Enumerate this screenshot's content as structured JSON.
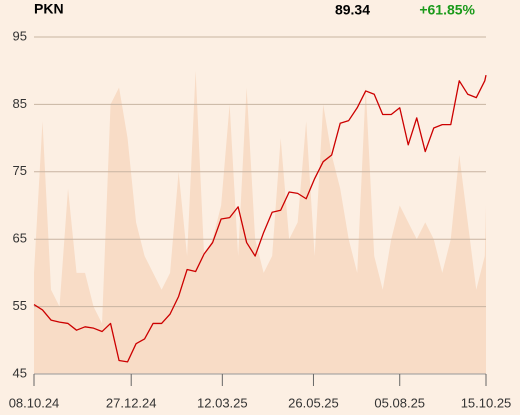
{
  "chart_data": {
    "type": "line",
    "title": "PKN",
    "last": 89.34,
    "change": {
      "value": 61.85,
      "label": "+61.85%",
      "color": "#1a9a1a"
    },
    "x": [
      "2024-10-08",
      "2024-10-15",
      "2024-10-22",
      "2024-10-29",
      "2024-11-05",
      "2024-11-12",
      "2024-11-19",
      "2024-11-26",
      "2024-12-03",
      "2024-12-10",
      "2024-12-17",
      "2024-12-24",
      "2024-12-31",
      "2025-01-07",
      "2025-01-14",
      "2025-01-21",
      "2025-01-28",
      "2025-02-04",
      "2025-02-11",
      "2025-02-18",
      "2025-02-25",
      "2025-03-04",
      "2025-03-11",
      "2025-03-18",
      "2025-03-25",
      "2025-04-01",
      "2025-04-08",
      "2025-04-15",
      "2025-04-22",
      "2025-04-29",
      "2025-05-06",
      "2025-05-13",
      "2025-05-20",
      "2025-05-27",
      "2025-06-03",
      "2025-06-10",
      "2025-06-17",
      "2025-06-24",
      "2025-07-01",
      "2025-07-08",
      "2025-07-15",
      "2025-07-22",
      "2025-07-29",
      "2025-08-05",
      "2025-08-12",
      "2025-08-19",
      "2025-08-26",
      "2025-09-02",
      "2025-09-09",
      "2025-09-16",
      "2025-09-23",
      "2025-09-30",
      "2025-10-07",
      "2025-10-14",
      "2025-10-15"
    ],
    "series": [
      {
        "color": "#cc0000",
        "values": [
          55.3,
          54.5,
          53,
          52.7,
          52.5,
          51.5,
          52,
          51.8,
          51.3,
          52.5,
          47,
          46.8,
          49.5,
          50.2,
          52.5,
          52.5,
          53.9,
          56.5,
          60.5,
          60.2,
          62.8,
          64.5,
          68,
          68.2,
          69.8,
          64.5,
          62.5,
          66,
          69,
          69.3,
          72,
          71.8,
          71,
          74,
          76.5,
          77.5,
          82.2,
          82.6,
          84.5,
          87,
          86.5,
          83.5,
          83.5,
          84.5,
          79,
          83,
          78,
          81.5,
          82,
          82,
          88.5,
          86.5,
          86,
          88.5,
          89.34
        ]
      },
      {
        "color": "#f8dcc6",
        "axis": "y2",
        "fill": true,
        "values": [
          30,
          75,
          25,
          20,
          55,
          30,
          30,
          20,
          15,
          80,
          85,
          70,
          45,
          35,
          30,
          25,
          30,
          60,
          35,
          90,
          35,
          40,
          50,
          80,
          35,
          85,
          40,
          30,
          35,
          70,
          40,
          45,
          75,
          35,
          80,
          65,
          55,
          40,
          30,
          85,
          35,
          25,
          40,
          50,
          45,
          40,
          45,
          40,
          30,
          40,
          65,
          45,
          25,
          35,
          50
        ]
      }
    ],
    "xlim": [
      "2024-10-08",
      "2025-10-15"
    ],
    "xticks": [
      {
        "value": "2024-10-08",
        "label": "08.10.24"
      },
      {
        "value": "2024-12-27",
        "label": "27.12.24"
      },
      {
        "value": "2025-03-12",
        "label": "12.03.25"
      },
      {
        "value": "2025-05-26",
        "label": "26.05.25"
      },
      {
        "value": "2025-08-05",
        "label": "05.08.25"
      },
      {
        "value": "2025-10-15",
        "label": "15.10.25"
      }
    ],
    "ylim": [
      45,
      95
    ],
    "yticks": [
      45,
      55,
      65,
      75,
      85,
      95
    ],
    "y2lim": [
      0,
      100
    ],
    "grid": true
  }
}
